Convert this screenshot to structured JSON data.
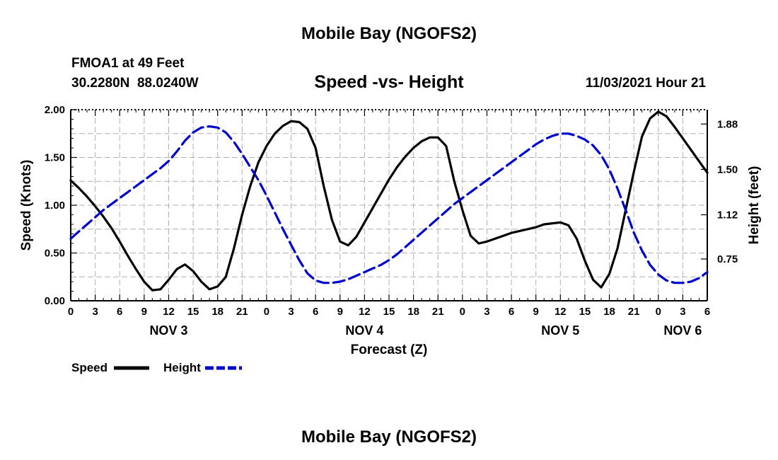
{
  "page": {
    "top_title": "Mobile Bay (NGOFS2)",
    "bottom_title": "Mobile Bay (NGOFS2)"
  },
  "chart_data": {
    "type": "line",
    "title": "Speed -vs- Height",
    "station": "FMOA1 at 49 Feet",
    "location": "30.2280N  88.0240W",
    "timestamp": "11/03/2021 Hour 21",
    "xlabel": "Forecast (Z)",
    "ylabel_left": "Speed (Knots)",
    "ylabel_right": "Height (feet)",
    "x_range": [
      0,
      78
    ],
    "x_ticks": [
      0,
      3,
      6,
      9,
      12,
      15,
      18,
      21,
      24,
      27,
      30,
      33,
      36,
      39,
      42,
      45,
      48,
      51,
      54,
      57,
      60,
      63,
      66,
      69,
      72,
      75,
      78
    ],
    "x_tick_labels": [
      "0",
      "3",
      "6",
      "9",
      "12",
      "15",
      "18",
      "21",
      "0",
      "3",
      "6",
      "9",
      "12",
      "15",
      "18",
      "21",
      "0",
      "3",
      "6",
      "9",
      "12",
      "15",
      "18",
      "21",
      "0",
      "3",
      "6"
    ],
    "date_labels": [
      {
        "x": 12,
        "label": "NOV 3"
      },
      {
        "x": 36,
        "label": "NOV 4"
      },
      {
        "x": 60,
        "label": "NOV 5"
      },
      {
        "x": 75,
        "label": "NOV 6"
      }
    ],
    "y_left_range": [
      0,
      2
    ],
    "y_left_ticks": [
      0,
      0.5,
      1,
      1.5,
      2
    ],
    "y_left_tick_labels": [
      "0.00",
      "0.50",
      "1.00",
      "1.50",
      "2.00"
    ],
    "y_right_range": [
      0.4,
      2.0
    ],
    "y_right_ticks": [
      0.75,
      1.12,
      1.5,
      1.88
    ],
    "y_right_tick_labels": [
      "0.75",
      "1.12",
      "1.50",
      "1.88"
    ],
    "grid": true,
    "legend": [
      {
        "name": "Speed",
        "color": "#000000",
        "style": "solid"
      },
      {
        "name": "Height",
        "color": "#0000cc",
        "style": "dashed"
      }
    ],
    "series": [
      {
        "name": "Speed",
        "axis": "left",
        "color": "#000000",
        "x": [
          0,
          1,
          2,
          3,
          4,
          5,
          6,
          7,
          8,
          9,
          10,
          11,
          12,
          13,
          14,
          15,
          16,
          17,
          18,
          19,
          20,
          21,
          22,
          23,
          24,
          25,
          26,
          27,
          28,
          29,
          30,
          31,
          32,
          33,
          34,
          35,
          36,
          37,
          38,
          39,
          40,
          41,
          42,
          43,
          44,
          45,
          46,
          47,
          48,
          49,
          50,
          51,
          52,
          53,
          54,
          55,
          56,
          57,
          58,
          59,
          60,
          61,
          62,
          63,
          64,
          65,
          66,
          67,
          68,
          69,
          70,
          71,
          72,
          73,
          74,
          75,
          76,
          77,
          78
        ],
        "values": [
          1.26,
          1.18,
          1.09,
          0.99,
          0.88,
          0.76,
          0.62,
          0.47,
          0.33,
          0.2,
          0.11,
          0.12,
          0.22,
          0.33,
          0.38,
          0.31,
          0.2,
          0.12,
          0.15,
          0.25,
          0.55,
          0.9,
          1.2,
          1.45,
          1.62,
          1.75,
          1.83,
          1.88,
          1.87,
          1.8,
          1.6,
          1.2,
          0.85,
          0.62,
          0.58,
          0.67,
          0.82,
          0.97,
          1.12,
          1.27,
          1.4,
          1.51,
          1.6,
          1.67,
          1.71,
          1.71,
          1.62,
          1.25,
          0.95,
          0.68,
          0.6,
          0.62,
          0.65,
          0.68,
          0.71,
          0.73,
          0.75,
          0.77,
          0.8,
          0.81,
          0.82,
          0.79,
          0.65,
          0.42,
          0.22,
          0.14,
          0.28,
          0.55,
          0.95,
          1.35,
          1.72,
          1.91,
          1.98,
          1.93,
          1.82,
          1.7,
          1.58,
          1.46,
          1.34
        ]
      },
      {
        "name": "Height",
        "axis": "right",
        "color": "#0000cc",
        "x": [
          0,
          1,
          2,
          3,
          4,
          5,
          6,
          7,
          8,
          9,
          10,
          11,
          12,
          13,
          14,
          15,
          16,
          17,
          18,
          19,
          20,
          21,
          22,
          23,
          24,
          25,
          26,
          27,
          28,
          29,
          30,
          31,
          32,
          33,
          34,
          35,
          36,
          37,
          38,
          39,
          40,
          41,
          42,
          43,
          44,
          45,
          46,
          47,
          48,
          49,
          50,
          51,
          52,
          53,
          54,
          55,
          56,
          57,
          58,
          59,
          60,
          61,
          62,
          63,
          64,
          65,
          66,
          67,
          68,
          69,
          70,
          71,
          72,
          73,
          74,
          75,
          76,
          77,
          78
        ],
        "values": [
          0.92,
          0.98,
          1.04,
          1.1,
          1.16,
          1.21,
          1.26,
          1.31,
          1.36,
          1.41,
          1.46,
          1.51,
          1.57,
          1.65,
          1.74,
          1.81,
          1.85,
          1.86,
          1.85,
          1.81,
          1.73,
          1.63,
          1.52,
          1.41,
          1.28,
          1.14,
          1.0,
          0.87,
          0.74,
          0.63,
          0.57,
          0.55,
          0.55,
          0.56,
          0.58,
          0.61,
          0.64,
          0.67,
          0.7,
          0.74,
          0.79,
          0.85,
          0.91,
          0.97,
          1.03,
          1.09,
          1.15,
          1.21,
          1.26,
          1.31,
          1.36,
          1.41,
          1.46,
          1.51,
          1.56,
          1.61,
          1.66,
          1.71,
          1.75,
          1.78,
          1.8,
          1.8,
          1.78,
          1.75,
          1.7,
          1.62,
          1.5,
          1.34,
          1.16,
          0.97,
          0.82,
          0.7,
          0.62,
          0.57,
          0.55,
          0.55,
          0.56,
          0.59,
          0.64
        ]
      }
    ]
  }
}
